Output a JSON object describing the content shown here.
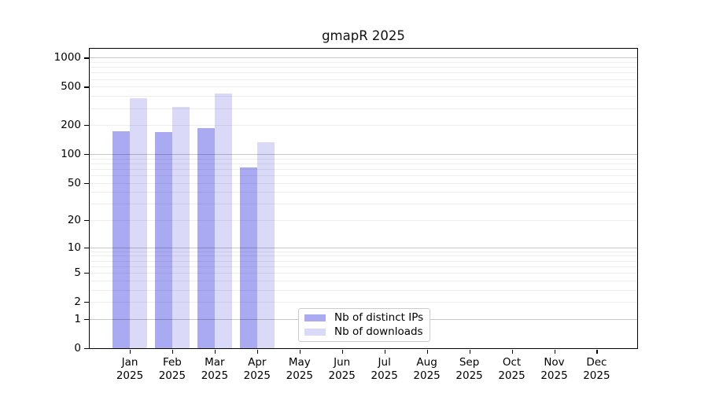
{
  "title": "gmapR 2025",
  "legend": {
    "items": [
      {
        "label": "Nb of distinct IPs",
        "color": "#aaaaf2"
      },
      {
        "label": "Nb of downloads",
        "color": "#dadaf8"
      }
    ]
  },
  "chart_data": {
    "type": "bar",
    "title": "gmapR 2025",
    "xlabel": "",
    "ylabel": "",
    "scale": "log1p (y position proportional to log10(1+value))",
    "categories": [
      "Jan",
      "Feb",
      "Mar",
      "Apr",
      "May",
      "Jun",
      "Jul",
      "Aug",
      "Sep",
      "Oct",
      "Nov",
      "Dec"
    ],
    "year": "2025",
    "yticks": [
      0,
      1,
      2,
      5,
      10,
      20,
      50,
      100,
      200,
      500,
      1000
    ],
    "ylim": [
      0,
      1260
    ],
    "grid": "horizontal log gridlines, majors at 1/10/100/1000, faint minors at 2-9 per decade",
    "legend_position": "bottom-center",
    "series": [
      {
        "name": "Nb of distinct IPs",
        "color": "#aaaaf2",
        "values": [
          173,
          171,
          186,
          73,
          0,
          0,
          0,
          0,
          0,
          0,
          0,
          0
        ]
      },
      {
        "name": "Nb of downloads",
        "color": "#dadaf8",
        "values": [
          380,
          312,
          424,
          133,
          0,
          0,
          0,
          0,
          0,
          0,
          0,
          0
        ]
      }
    ]
  }
}
